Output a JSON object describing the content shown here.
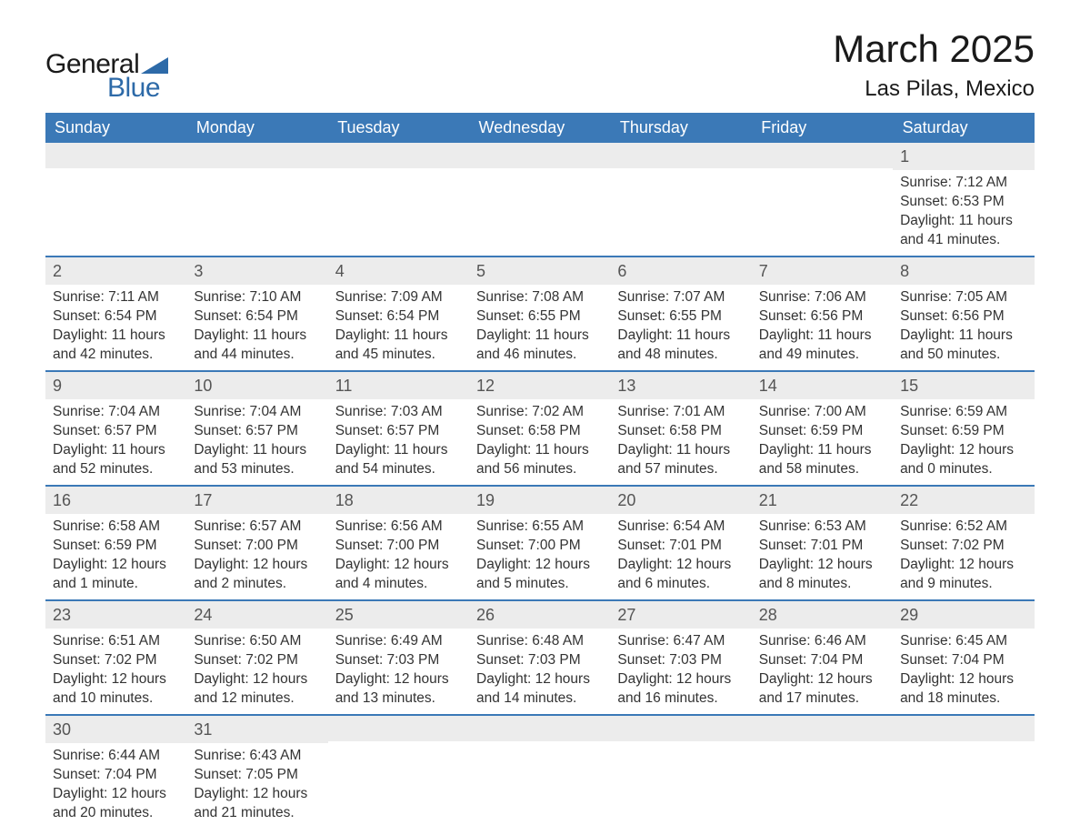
{
  "brand": {
    "text_general": "General",
    "text_blue": "Blue",
    "shape_color": "#2d6aa8",
    "text_color_dark": "#1a1a1a"
  },
  "header": {
    "month_title": "March 2025",
    "location": "Las Pilas, Mexico"
  },
  "colors": {
    "header_bg": "#3b79b7",
    "header_text": "#ffffff",
    "daynum_bg": "#ececec",
    "row_border": "#3b79b7",
    "body_text": "#333333",
    "background": "#ffffff"
  },
  "typography": {
    "month_title_fontsize": 42,
    "location_fontsize": 24,
    "dayheader_fontsize": 18,
    "daynum_fontsize": 18,
    "body_fontsize": 15.5,
    "font_family": "Arial"
  },
  "calendar": {
    "type": "table",
    "day_headers": [
      "Sunday",
      "Monday",
      "Tuesday",
      "Wednesday",
      "Thursday",
      "Friday",
      "Saturday"
    ],
    "weeks": [
      [
        null,
        null,
        null,
        null,
        null,
        null,
        {
          "n": "1",
          "sr": "Sunrise: 7:12 AM",
          "ss": "Sunset: 6:53 PM",
          "d1": "Daylight: 11 hours",
          "d2": "and 41 minutes."
        }
      ],
      [
        {
          "n": "2",
          "sr": "Sunrise: 7:11 AM",
          "ss": "Sunset: 6:54 PM",
          "d1": "Daylight: 11 hours",
          "d2": "and 42 minutes."
        },
        {
          "n": "3",
          "sr": "Sunrise: 7:10 AM",
          "ss": "Sunset: 6:54 PM",
          "d1": "Daylight: 11 hours",
          "d2": "and 44 minutes."
        },
        {
          "n": "4",
          "sr": "Sunrise: 7:09 AM",
          "ss": "Sunset: 6:54 PM",
          "d1": "Daylight: 11 hours",
          "d2": "and 45 minutes."
        },
        {
          "n": "5",
          "sr": "Sunrise: 7:08 AM",
          "ss": "Sunset: 6:55 PM",
          "d1": "Daylight: 11 hours",
          "d2": "and 46 minutes."
        },
        {
          "n": "6",
          "sr": "Sunrise: 7:07 AM",
          "ss": "Sunset: 6:55 PM",
          "d1": "Daylight: 11 hours",
          "d2": "and 48 minutes."
        },
        {
          "n": "7",
          "sr": "Sunrise: 7:06 AM",
          "ss": "Sunset: 6:56 PM",
          "d1": "Daylight: 11 hours",
          "d2": "and 49 minutes."
        },
        {
          "n": "8",
          "sr": "Sunrise: 7:05 AM",
          "ss": "Sunset: 6:56 PM",
          "d1": "Daylight: 11 hours",
          "d2": "and 50 minutes."
        }
      ],
      [
        {
          "n": "9",
          "sr": "Sunrise: 7:04 AM",
          "ss": "Sunset: 6:57 PM",
          "d1": "Daylight: 11 hours",
          "d2": "and 52 minutes."
        },
        {
          "n": "10",
          "sr": "Sunrise: 7:04 AM",
          "ss": "Sunset: 6:57 PM",
          "d1": "Daylight: 11 hours",
          "d2": "and 53 minutes."
        },
        {
          "n": "11",
          "sr": "Sunrise: 7:03 AM",
          "ss": "Sunset: 6:57 PM",
          "d1": "Daylight: 11 hours",
          "d2": "and 54 minutes."
        },
        {
          "n": "12",
          "sr": "Sunrise: 7:02 AM",
          "ss": "Sunset: 6:58 PM",
          "d1": "Daylight: 11 hours",
          "d2": "and 56 minutes."
        },
        {
          "n": "13",
          "sr": "Sunrise: 7:01 AM",
          "ss": "Sunset: 6:58 PM",
          "d1": "Daylight: 11 hours",
          "d2": "and 57 minutes."
        },
        {
          "n": "14",
          "sr": "Sunrise: 7:00 AM",
          "ss": "Sunset: 6:59 PM",
          "d1": "Daylight: 11 hours",
          "d2": "and 58 minutes."
        },
        {
          "n": "15",
          "sr": "Sunrise: 6:59 AM",
          "ss": "Sunset: 6:59 PM",
          "d1": "Daylight: 12 hours",
          "d2": "and 0 minutes."
        }
      ],
      [
        {
          "n": "16",
          "sr": "Sunrise: 6:58 AM",
          "ss": "Sunset: 6:59 PM",
          "d1": "Daylight: 12 hours",
          "d2": "and 1 minute."
        },
        {
          "n": "17",
          "sr": "Sunrise: 6:57 AM",
          "ss": "Sunset: 7:00 PM",
          "d1": "Daylight: 12 hours",
          "d2": "and 2 minutes."
        },
        {
          "n": "18",
          "sr": "Sunrise: 6:56 AM",
          "ss": "Sunset: 7:00 PM",
          "d1": "Daylight: 12 hours",
          "d2": "and 4 minutes."
        },
        {
          "n": "19",
          "sr": "Sunrise: 6:55 AM",
          "ss": "Sunset: 7:00 PM",
          "d1": "Daylight: 12 hours",
          "d2": "and 5 minutes."
        },
        {
          "n": "20",
          "sr": "Sunrise: 6:54 AM",
          "ss": "Sunset: 7:01 PM",
          "d1": "Daylight: 12 hours",
          "d2": "and 6 minutes."
        },
        {
          "n": "21",
          "sr": "Sunrise: 6:53 AM",
          "ss": "Sunset: 7:01 PM",
          "d1": "Daylight: 12 hours",
          "d2": "and 8 minutes."
        },
        {
          "n": "22",
          "sr": "Sunrise: 6:52 AM",
          "ss": "Sunset: 7:02 PM",
          "d1": "Daylight: 12 hours",
          "d2": "and 9 minutes."
        }
      ],
      [
        {
          "n": "23",
          "sr": "Sunrise: 6:51 AM",
          "ss": "Sunset: 7:02 PM",
          "d1": "Daylight: 12 hours",
          "d2": "and 10 minutes."
        },
        {
          "n": "24",
          "sr": "Sunrise: 6:50 AM",
          "ss": "Sunset: 7:02 PM",
          "d1": "Daylight: 12 hours",
          "d2": "and 12 minutes."
        },
        {
          "n": "25",
          "sr": "Sunrise: 6:49 AM",
          "ss": "Sunset: 7:03 PM",
          "d1": "Daylight: 12 hours",
          "d2": "and 13 minutes."
        },
        {
          "n": "26",
          "sr": "Sunrise: 6:48 AM",
          "ss": "Sunset: 7:03 PM",
          "d1": "Daylight: 12 hours",
          "d2": "and 14 minutes."
        },
        {
          "n": "27",
          "sr": "Sunrise: 6:47 AM",
          "ss": "Sunset: 7:03 PM",
          "d1": "Daylight: 12 hours",
          "d2": "and 16 minutes."
        },
        {
          "n": "28",
          "sr": "Sunrise: 6:46 AM",
          "ss": "Sunset: 7:04 PM",
          "d1": "Daylight: 12 hours",
          "d2": "and 17 minutes."
        },
        {
          "n": "29",
          "sr": "Sunrise: 6:45 AM",
          "ss": "Sunset: 7:04 PM",
          "d1": "Daylight: 12 hours",
          "d2": "and 18 minutes."
        }
      ],
      [
        {
          "n": "30",
          "sr": "Sunrise: 6:44 AM",
          "ss": "Sunset: 7:04 PM",
          "d1": "Daylight: 12 hours",
          "d2": "and 20 minutes."
        },
        {
          "n": "31",
          "sr": "Sunrise: 6:43 AM",
          "ss": "Sunset: 7:05 PM",
          "d1": "Daylight: 12 hours",
          "d2": "and 21 minutes."
        },
        null,
        null,
        null,
        null,
        null
      ]
    ]
  }
}
